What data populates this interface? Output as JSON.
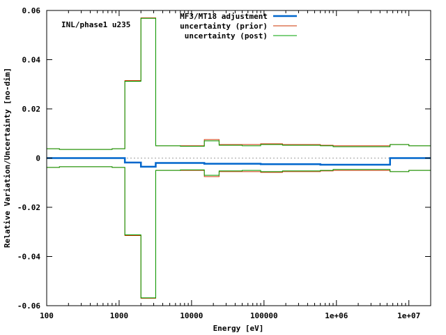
{
  "chart_data": {
    "type": "line",
    "title": "",
    "annotation": "INL/phase1 u235",
    "xlabel": "Energy [eV]",
    "ylabel": "Relative Variation/Uncertainty [no-dim]",
    "xscale": "log",
    "xlim": [
      100,
      20000000
    ],
    "ylim": [
      -0.06,
      0.06
    ],
    "x_ticks": [
      {
        "value": 100,
        "label": "100"
      },
      {
        "value": 1000,
        "label": "1000"
      },
      {
        "value": 10000,
        "label": "10000"
      },
      {
        "value": 100000,
        "label": "100000"
      },
      {
        "value": 1000000,
        "label": "1e+06"
      },
      {
        "value": 10000000,
        "label": "1e+07"
      }
    ],
    "y_ticks": [
      {
        "value": -0.06,
        "label": "-0.06"
      },
      {
        "value": -0.04,
        "label": "-0.04"
      },
      {
        "value": -0.02,
        "label": "-0.02"
      },
      {
        "value": 0,
        "label": "0"
      },
      {
        "value": 0.02,
        "label": "0.02"
      },
      {
        "value": 0.04,
        "label": "0.04"
      },
      {
        "value": 0.06,
        "label": "0.06"
      }
    ],
    "zero_line": true,
    "legend_position": "top-right",
    "bin_edges": [
      100,
      150,
      800,
      1200,
      2000,
      3200,
      7000,
      15000,
      24000,
      50000,
      90000,
      180000,
      600000,
      900000,
      3500000,
      5500000,
      10000000,
      20000000
    ],
    "series": [
      {
        "name": "MF3/MT18 adjustment",
        "color": "#0066cc",
        "style": "step",
        "values": [
          0,
          0,
          0,
          -0.0018,
          -0.0035,
          -0.002,
          -0.002,
          -0.0023,
          -0.0023,
          -0.0023,
          -0.0025,
          -0.0025,
          -0.0027,
          -0.0027,
          -0.0027,
          0,
          0
        ]
      },
      {
        "name": "uncertainty (prior)",
        "color": "#cc3300",
        "style": "step",
        "mirrored": true,
        "values": [
          0.0038,
          0.0035,
          0.0038,
          0.0315,
          0.057,
          0.005,
          0.005,
          0.0075,
          0.0055,
          0.0055,
          0.0058,
          0.0055,
          0.0052,
          0.005,
          0.005,
          0.0055,
          0.005
        ]
      },
      {
        "name": "uncertainty (post)",
        "color": "#00a000",
        "style": "step",
        "mirrored": true,
        "values": [
          0.0038,
          0.0035,
          0.0038,
          0.0312,
          0.0568,
          0.005,
          0.0048,
          0.007,
          0.0052,
          0.005,
          0.0055,
          0.0052,
          0.005,
          0.0046,
          0.0046,
          0.0055,
          0.005
        ]
      }
    ]
  }
}
